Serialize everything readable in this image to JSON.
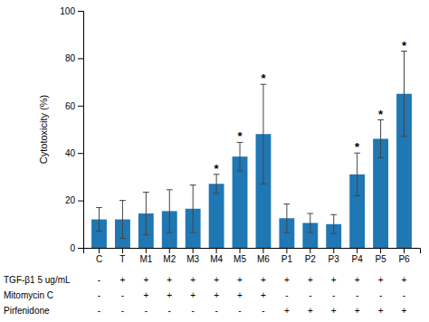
{
  "chart_data": {
    "type": "bar",
    "categories": [
      "C",
      "T",
      "M1",
      "M2",
      "M3",
      "M4",
      "M5",
      "M6",
      "P1",
      "P2",
      "P3",
      "P4",
      "P5",
      "P6"
    ],
    "values": [
      12,
      12,
      14.5,
      15.5,
      16.5,
      27,
      38.5,
      48,
      12.5,
      10.5,
      10,
      31,
      46,
      65
    ],
    "errors": [
      5,
      8,
      9,
      9,
      10,
      4,
      6,
      21,
      6,
      4,
      4,
      9,
      8,
      18
    ],
    "ylabel": "Cytotoxicity (%)",
    "ylim": [
      0,
      100
    ],
    "yticks": [
      0,
      20,
      40,
      60,
      80,
      100
    ],
    "grid": false,
    "annotations": [
      {
        "x": "M4",
        "text": "*"
      },
      {
        "x": "M5",
        "text": "*"
      },
      {
        "x": "M6",
        "text": "*"
      },
      {
        "x": "P4",
        "text": "*"
      },
      {
        "x": "P5",
        "text": "*"
      },
      {
        "x": "P6",
        "text": "*"
      }
    ],
    "table": [
      {
        "label": "TGF-β1 5 ug/mL",
        "values": [
          "-",
          "+",
          "+",
          "+",
          "+",
          "+",
          "+",
          "+",
          "+",
          "+",
          "+",
          "+",
          "+",
          "+"
        ]
      },
      {
        "label": "Mitomycin C",
        "values": [
          "-",
          "-",
          "+",
          "+",
          "+",
          "+",
          "+",
          "+",
          "-",
          "-",
          "-",
          "-",
          "-",
          "-"
        ]
      },
      {
        "label": "Pirfenidone",
        "values": [
          "-",
          "-",
          "-",
          "-",
          "-",
          "-",
          "-",
          "-",
          "+",
          "+",
          "+",
          "+",
          "+",
          "+"
        ]
      }
    ]
  }
}
